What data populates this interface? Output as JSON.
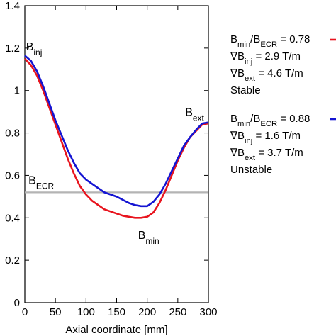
{
  "chart_data": {
    "type": "line",
    "xlabel": "Axial coordinate [mm]",
    "ylabel": "",
    "xlim": [
      0,
      300
    ],
    "ylim": [
      0,
      1.4
    ],
    "xticks": [
      "0",
      "50",
      "100",
      "150",
      "200",
      "250",
      "300"
    ],
    "yticks": [
      "0",
      "0.2",
      "0.4",
      "0.6",
      "0.8",
      "1",
      "1.2",
      "1.4"
    ],
    "xtick_values": [
      0,
      50,
      100,
      150,
      200,
      250,
      300
    ],
    "ytick_values": [
      0,
      0.2,
      0.4,
      0.6,
      0.8,
      1.0,
      1.2,
      1.4
    ],
    "grid": false,
    "legend_position": "right, outside plot",
    "series": [
      {
        "name": "Stable",
        "color": "#e8141e",
        "legend_lines": [
          {
            "base": "B",
            "sub": "min",
            "mid": "/B",
            "sub2": "ECR",
            "tail": " = 0.78"
          },
          {
            "base": "∇B",
            "sub": "inj",
            "mid": "",
            "sub2": "",
            "tail": " = 2.9 T/m"
          },
          {
            "base": "∇B",
            "sub": "ext",
            "mid": "",
            "sub2": "",
            "tail": " = 4.6 T/m"
          },
          {
            "base": "Stable",
            "sub": "",
            "mid": "",
            "sub2": "",
            "tail": ""
          }
        ],
        "x": [
          0,
          10,
          20,
          30,
          40,
          50,
          60,
          70,
          80,
          90,
          100,
          110,
          120,
          130,
          140,
          150,
          160,
          170,
          180,
          190,
          200,
          210,
          220,
          230,
          240,
          250,
          260,
          270,
          280,
          290,
          300
        ],
        "y": [
          1.15,
          1.12,
          1.07,
          1.0,
          0.92,
          0.84,
          0.76,
          0.68,
          0.61,
          0.55,
          0.51,
          0.48,
          0.46,
          0.44,
          0.43,
          0.42,
          0.41,
          0.405,
          0.4,
          0.4,
          0.405,
          0.425,
          0.47,
          0.53,
          0.6,
          0.67,
          0.73,
          0.78,
          0.81,
          0.84,
          0.845
        ]
      },
      {
        "name": "Unstable",
        "color": "#1414d2",
        "legend_lines": [
          {
            "base": "B",
            "sub": "min",
            "mid": "/B",
            "sub2": "ECR",
            "tail": " = 0.88"
          },
          {
            "base": "∇B",
            "sub": "inj",
            "mid": "",
            "sub2": "",
            "tail": " = 1.6 T/m"
          },
          {
            "base": "∇B",
            "sub": "ext",
            "mid": "",
            "sub2": "",
            "tail": " = 3.7 T/m"
          },
          {
            "base": "Unstable",
            "sub": "",
            "mid": "",
            "sub2": "",
            "tail": ""
          }
        ],
        "x": [
          0,
          10,
          20,
          30,
          40,
          50,
          60,
          70,
          80,
          90,
          100,
          110,
          120,
          130,
          140,
          150,
          160,
          170,
          180,
          190,
          200,
          210,
          220,
          230,
          240,
          250,
          260,
          270,
          280,
          290,
          300
        ],
        "y": [
          1.165,
          1.14,
          1.09,
          1.02,
          0.94,
          0.86,
          0.79,
          0.72,
          0.66,
          0.61,
          0.58,
          0.56,
          0.54,
          0.52,
          0.51,
          0.5,
          0.485,
          0.47,
          0.46,
          0.455,
          0.455,
          0.475,
          0.51,
          0.56,
          0.62,
          0.68,
          0.74,
          0.78,
          0.815,
          0.845,
          0.85
        ]
      }
    ],
    "reference_line": {
      "y": 0.52,
      "color": "#b4b4b4"
    },
    "annotations": [
      {
        "base": "B",
        "sub": "inj",
        "x": 2,
        "y": 1.19
      },
      {
        "base": "B",
        "sub": "ECR",
        "x": 6,
        "y": 0.56
      },
      {
        "base": "B",
        "sub": "min",
        "x": 185,
        "y": 0.3
      },
      {
        "base": "B",
        "sub": "ext",
        "x": 262,
        "y": 0.88
      }
    ]
  }
}
